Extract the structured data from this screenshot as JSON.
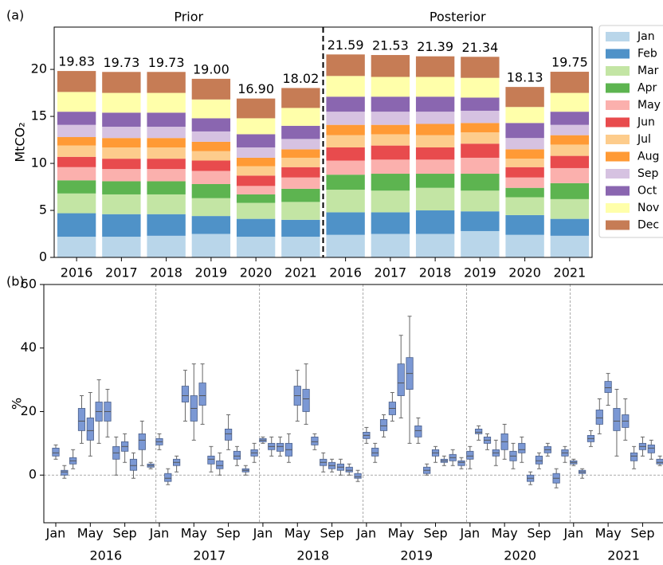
{
  "chart_data": [
    {
      "type": "stacked_bar",
      "panel_label": "(a)",
      "groups": [
        "Prior",
        "Posterior"
      ],
      "y_label": "MtCO₂",
      "categories": [
        2016,
        2017,
        2018,
        2019,
        2020,
        2021,
        2016,
        2017,
        2018,
        2019,
        2020,
        2021
      ],
      "total_labels": [
        "19.83",
        "19.73",
        "19.73",
        "19.00",
        "16.90",
        "18.02",
        "21.59",
        "21.53",
        "21.39",
        "21.34",
        "18.13",
        "19.75"
      ],
      "ylim": [
        0,
        24.5
      ],
      "yticks": [
        0,
        5,
        10,
        15,
        20
      ],
      "series": [
        {
          "name": "Jan",
          "color": "#b9d6ea",
          "values": [
            2.2,
            2.2,
            2.3,
            2.5,
            2.2,
            2.2,
            2.4,
            2.5,
            2.5,
            2.8,
            2.4,
            2.3
          ]
        },
        {
          "name": "Feb",
          "color": "#4f92c8",
          "values": [
            2.5,
            2.4,
            2.3,
            1.9,
            1.9,
            1.8,
            2.4,
            2.3,
            2.5,
            2.1,
            2.1,
            1.8
          ]
        },
        {
          "name": "Mar",
          "color": "#c3e5a4",
          "values": [
            2.1,
            2.1,
            2.1,
            1.9,
            1.7,
            1.9,
            2.4,
            2.3,
            2.4,
            2.2,
            1.9,
            2.1
          ]
        },
        {
          "name": "Apr",
          "color": "#5db450",
          "values": [
            1.4,
            1.4,
            1.4,
            1.5,
            0.9,
            1.4,
            1.6,
            1.8,
            1.5,
            1.8,
            1.0,
            1.7
          ]
        },
        {
          "name": "May",
          "color": "#fbb0ad",
          "values": [
            1.4,
            1.3,
            1.3,
            1.4,
            0.9,
            1.2,
            1.5,
            1.5,
            1.5,
            1.7,
            1.1,
            1.6
          ]
        },
        {
          "name": "Jun",
          "color": "#e84b4d",
          "values": [
            1.1,
            1.1,
            1.1,
            1.1,
            1.1,
            1.1,
            1.4,
            1.5,
            1.3,
            1.5,
            1.1,
            1.3
          ]
        },
        {
          "name": "Jul",
          "color": "#fdcc8c",
          "values": [
            1.2,
            1.2,
            1.2,
            1.0,
            1.0,
            1.0,
            1.3,
            1.2,
            1.3,
            1.2,
            0.9,
            1.2
          ]
        },
        {
          "name": "Aug",
          "color": "#ff9a35",
          "values": [
            0.9,
            1.0,
            1.0,
            1.0,
            0.9,
            0.9,
            1.1,
            1.0,
            1.2,
            1.0,
            1.0,
            1.0
          ]
        },
        {
          "name": "Sep",
          "color": "#d6c2e1",
          "values": [
            1.3,
            1.2,
            1.2,
            1.1,
            1.1,
            1.1,
            1.4,
            1.4,
            1.3,
            1.3,
            1.2,
            1.1
          ]
        },
        {
          "name": "Oct",
          "color": "#8a66b0",
          "values": [
            1.4,
            1.5,
            1.5,
            1.4,
            1.4,
            1.4,
            1.6,
            1.6,
            1.6,
            1.4,
            1.6,
            1.4
          ]
        },
        {
          "name": "Nov",
          "color": "#ffffaa",
          "values": [
            2.1,
            2.1,
            2.1,
            2.0,
            1.7,
            1.9,
            2.2,
            2.1,
            2.1,
            2.1,
            1.7,
            2.0
          ]
        },
        {
          "name": "Dec",
          "color": "#c67c55",
          "values": [
            2.23,
            2.23,
            2.23,
            2.2,
            2.1,
            2.12,
            2.29,
            2.33,
            2.19,
            2.24,
            2.13,
            2.25
          ]
        }
      ]
    },
    {
      "type": "box",
      "panel_label": "(b)",
      "y_label": "%",
      "color": "#7b98d4",
      "categories": [
        "Jan",
        null,
        null,
        null,
        "May",
        null,
        null,
        null,
        "Sep",
        null,
        null,
        null,
        "Jan",
        null,
        null,
        null,
        "May",
        null,
        null,
        null,
        "Sep",
        null,
        null,
        null,
        "Jan",
        null,
        null,
        null,
        "May",
        null,
        null,
        null,
        "Sep",
        null,
        null,
        null,
        "Jan",
        null,
        null,
        null,
        "May",
        null,
        null,
        null,
        "Sep",
        null,
        null,
        null,
        "Jan",
        null,
        null,
        null,
        "May",
        null,
        null,
        null,
        "Sep",
        null,
        null,
        null,
        "Jan",
        null,
        null,
        null,
        "May",
        null,
        null,
        null,
        "Sep",
        null,
        null,
        null
      ],
      "years": [
        2016,
        2017,
        2018,
        2019,
        2020,
        2021
      ],
      "ylim": [
        -15,
        60
      ],
      "yticks": [
        0,
        20,
        40,
        60
      ],
      "low": [
        5,
        -1,
        2,
        10,
        6,
        10,
        12,
        0,
        4,
        -1,
        3,
        2,
        8,
        -3,
        1,
        17,
        11,
        16,
        1,
        0,
        8,
        3,
        0,
        4,
        10,
        6,
        6,
        4,
        17,
        16,
        8,
        1,
        1,
        0,
        0,
        -2,
        10,
        4,
        12,
        17,
        18,
        10,
        10,
        0,
        4,
        3,
        3,
        2,
        2,
        11,
        8,
        3,
        5,
        2,
        4,
        -3,
        2,
        6,
        -4,
        4,
        3,
        -1,
        9,
        13,
        22,
        6,
        11,
        2,
        6,
        5,
        3,
        2
      ],
      "q1": [
        6,
        0,
        3.5,
        14,
        11,
        17,
        17,
        5,
        7.5,
        1.5,
        8,
        2.5,
        9.5,
        -2,
        3,
        23,
        17,
        22,
        3.5,
        2,
        11,
        5,
        1,
        6,
        10.5,
        8,
        7.5,
        6,
        22,
        20,
        9.5,
        3,
        2,
        1.5,
        1,
        -1,
        11.5,
        6,
        14,
        19,
        25,
        27,
        12,
        0.5,
        6,
        4,
        4.5,
        3,
        5,
        13,
        10,
        6,
        8,
        4.5,
        7,
        -2,
        3.5,
        7,
        -2.5,
        6,
        3.5,
        0.5,
        10.5,
        16,
        26,
        14,
        15,
        4.5,
        8,
        7,
        3.5,
        3
      ],
      "median": [
        7,
        1,
        4.5,
        17,
        14,
        20,
        20,
        7,
        9,
        3,
        11,
        3,
        10.5,
        -1,
        4,
        25,
        21,
        25,
        5,
        3,
        13,
        6,
        1.5,
        7,
        11,
        9,
        9,
        8,
        25,
        24,
        10.5,
        4,
        3,
        2.5,
        1.5,
        -0.5,
        12.5,
        7,
        15.5,
        21,
        29,
        32,
        14,
        1.5,
        7,
        4.5,
        5.5,
        4,
        6,
        13.5,
        11,
        7,
        10.5,
        6,
        8,
        -1,
        4.5,
        8,
        -1,
        7,
        4,
        1,
        11.5,
        18,
        27.5,
        17,
        17,
        6,
        9,
        8.5,
        4,
        4
      ],
      "q3": [
        8.5,
        1.5,
        5.5,
        21,
        18,
        23,
        23,
        9,
        10.5,
        5,
        13,
        3.5,
        11.5,
        0.5,
        5,
        28,
        25,
        29,
        6,
        4.5,
        14.5,
        7.5,
        2,
        8,
        11.5,
        10,
        10,
        10,
        28,
        27,
        12,
        5,
        4,
        3.5,
        2.5,
        0.5,
        13.5,
        8.5,
        17.5,
        23,
        35,
        37,
        15.5,
        2.5,
        8,
        5,
        6.5,
        4.5,
        7.5,
        14.5,
        12,
        8,
        13,
        7.5,
        10,
        0,
        6,
        9,
        0.5,
        8,
        4.5,
        1.5,
        12.5,
        20.5,
        29.5,
        21,
        19,
        7,
        10,
        9.5,
        5,
        5
      ],
      "high": [
        9.5,
        3,
        8,
        25,
        26,
        30,
        27,
        12,
        13,
        7,
        17,
        4,
        13,
        2,
        6,
        33,
        35,
        35,
        9,
        7,
        19,
        9,
        3,
        10,
        12,
        12,
        12,
        13,
        33,
        35,
        13,
        7,
        5,
        5,
        3.5,
        1.5,
        15,
        10,
        19,
        26,
        44,
        50,
        18,
        3.5,
        9,
        6,
        8,
        5.5,
        9,
        15.5,
        13,
        11,
        16,
        10,
        12,
        1,
        7,
        10,
        2,
        9,
        5,
        2,
        14,
        24,
        32,
        27,
        24,
        9,
        12,
        11,
        6,
        6
      ]
    }
  ]
}
